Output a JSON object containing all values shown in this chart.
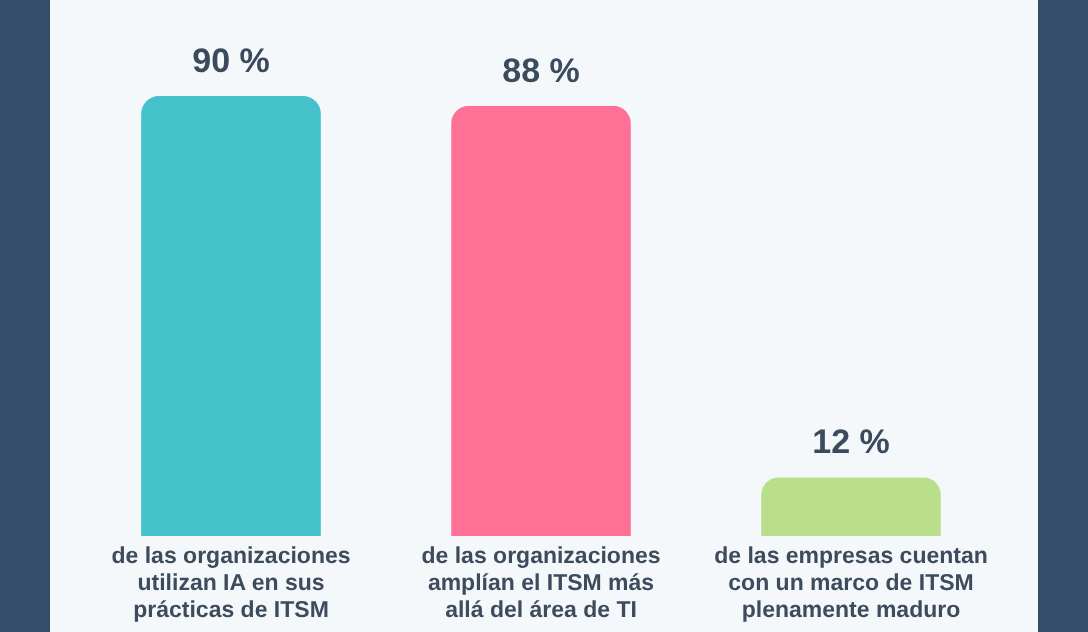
{
  "chart_data": {
    "type": "bar",
    "categories": [
      "de las organizaciones utilizan IA en sus prácticas de ITSM",
      "de las organizaciones amplían el ITSM más allá del área de TI",
      "de las empresas cuentan con un marco de ITSM plenamente maduro"
    ],
    "values": [
      90,
      88,
      12
    ],
    "colors": [
      "#44c1c9",
      "#ff7096",
      "#badf8a"
    ],
    "value_labels": [
      "90 %",
      "88 %",
      "12 %"
    ]
  }
}
